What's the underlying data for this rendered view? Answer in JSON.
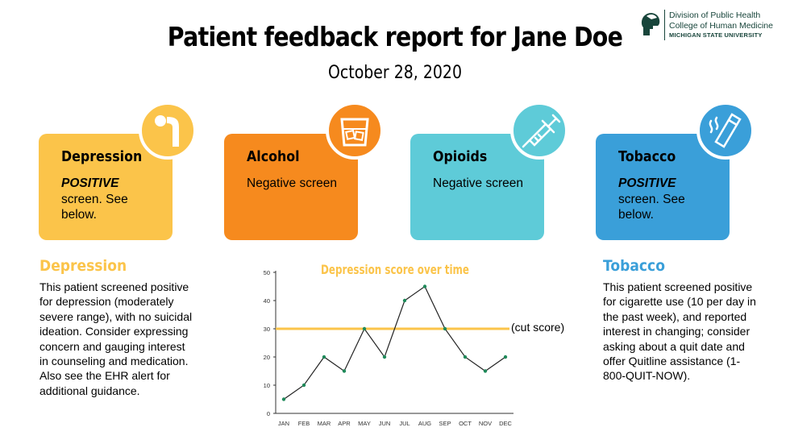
{
  "header": {
    "title": "Patient feedback report for Jane Doe",
    "date": "October 28, 2020"
  },
  "logo": {
    "line1": "Division of Public Health",
    "line2": "College of Human Medicine",
    "line3": "MICHIGAN STATE UNIVERSITY",
    "icon": "spartan-helmet-icon"
  },
  "cards": [
    {
      "title": "Depression",
      "result_emphasis": "POSITIVE",
      "result_text": "screen. See below.",
      "color": "#fbc44a",
      "icon": "depressed-person-icon"
    },
    {
      "title": "Alcohol",
      "result_emphasis": "",
      "result_text": "Negative screen",
      "color": "#f68a1e",
      "icon": "whiskey-glass-icon"
    },
    {
      "title": "Opioids",
      "result_emphasis": "",
      "result_text": "Negative screen",
      "color": "#5ecbd8",
      "icon": "syringe-icon"
    },
    {
      "title": "Tobacco",
      "result_emphasis": "POSITIVE",
      "result_text": "screen. See below.",
      "color": "#3a9fd9",
      "icon": "cigarette-icon"
    }
  ],
  "depression_section": {
    "heading": "Depression",
    "text": "This patient screened positive for depression (moderately severe range), with no suicidal ideation. Consider expressing concern and gauging interest in counseling and medication. Also see the EHR alert for additional guidance.",
    "color": "#fbc44a"
  },
  "tobacco_section": {
    "heading": "Tobacco",
    "text": "This patient screened positive for cigarette use (10 per day in the past week), and reported interest in changing; consider asking about a quit date and offer Quitline assistance (1-800-QUIT-NOW).",
    "color": "#3a9fd9"
  },
  "chart_data": {
    "type": "line",
    "title": "Depression score over time",
    "categories": [
      "JAN",
      "FEB",
      "MAR",
      "APR",
      "MAY",
      "JUN",
      "JUL",
      "AUG",
      "SEP",
      "OCT",
      "NOV",
      "DEC"
    ],
    "series": [
      {
        "values": [
          5,
          10,
          20,
          15,
          30,
          20,
          40,
          45,
          30,
          20,
          15,
          20
        ]
      }
    ],
    "ylim": [
      0,
      50
    ],
    "yticks": [
      0,
      10,
      20,
      30,
      40,
      50
    ],
    "reference_line": {
      "value": 30,
      "label": "(cut score)",
      "color": "#fbc44a"
    },
    "line_color": "#222222",
    "grid": false
  }
}
